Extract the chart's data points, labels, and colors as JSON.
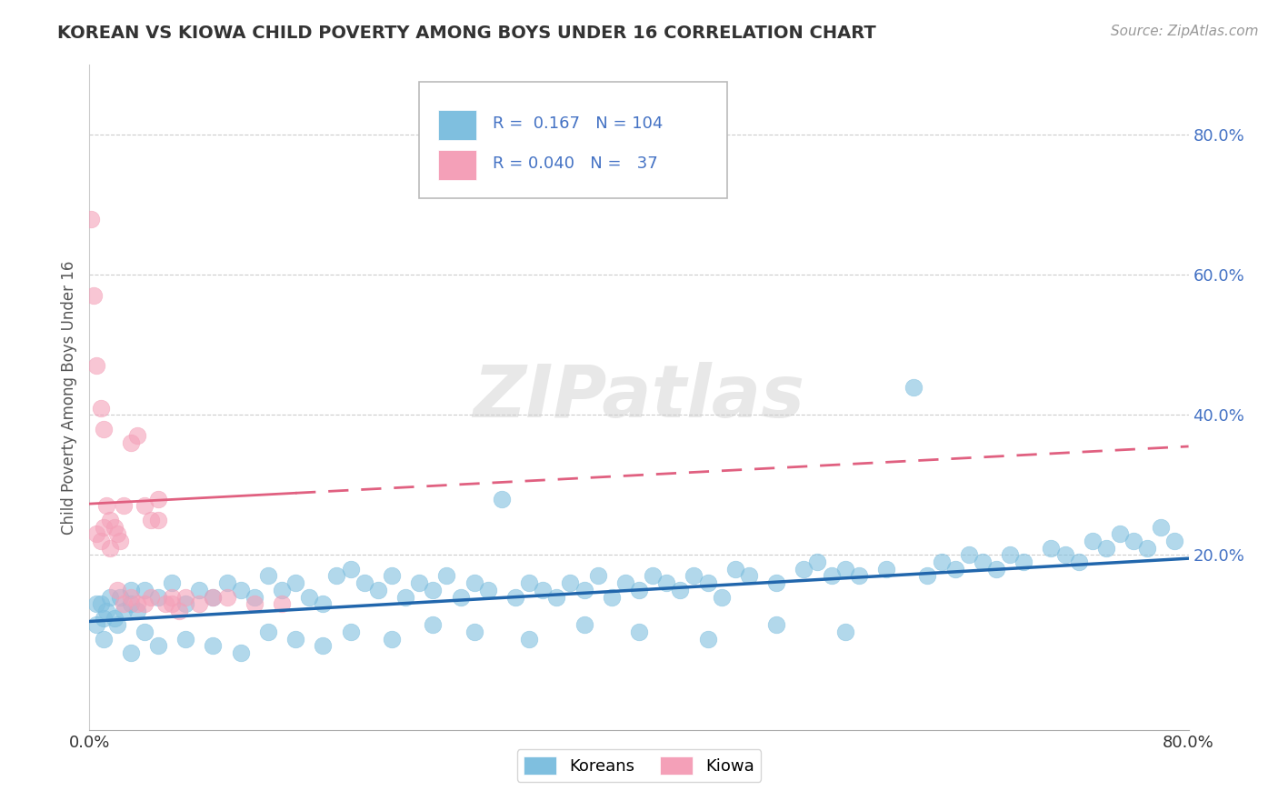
{
  "title": "KOREAN VS KIOWA CHILD POVERTY AMONG BOYS UNDER 16 CORRELATION CHART",
  "source": "Source: ZipAtlas.com",
  "ylabel": "Child Poverty Among Boys Under 16",
  "xlim": [
    0.0,
    0.8
  ],
  "ylim": [
    -0.05,
    0.9
  ],
  "ytick_labels": [
    "20.0%",
    "40.0%",
    "60.0%",
    "80.0%"
  ],
  "ytick_values": [
    0.2,
    0.4,
    0.6,
    0.8
  ],
  "korean_color": "#7fbfdf",
  "kiowa_color": "#f4a0b8",
  "korean_line_color": "#2166ac",
  "kiowa_line_color": "#e06080",
  "korean_R": 0.167,
  "korean_N": 104,
  "kiowa_R": 0.04,
  "kiowa_N": 37,
  "watermark": "ZIPatlas",
  "background_color": "#ffffff",
  "right_tick_color": "#4472c4",
  "korean_x": [
    0.005,
    0.01,
    0.015,
    0.02,
    0.025,
    0.03,
    0.04,
    0.01,
    0.005,
    0.008,
    0.012,
    0.018,
    0.022,
    0.03,
    0.035,
    0.04,
    0.05,
    0.06,
    0.07,
    0.08,
    0.09,
    0.1,
    0.11,
    0.12,
    0.13,
    0.14,
    0.15,
    0.16,
    0.17,
    0.18,
    0.19,
    0.2,
    0.21,
    0.22,
    0.23,
    0.24,
    0.25,
    0.26,
    0.27,
    0.28,
    0.29,
    0.3,
    0.31,
    0.32,
    0.33,
    0.34,
    0.35,
    0.36,
    0.37,
    0.38,
    0.39,
    0.4,
    0.41,
    0.42,
    0.43,
    0.44,
    0.45,
    0.46,
    0.47,
    0.48,
    0.5,
    0.52,
    0.53,
    0.54,
    0.55,
    0.56,
    0.58,
    0.6,
    0.61,
    0.62,
    0.63,
    0.64,
    0.65,
    0.66,
    0.67,
    0.68,
    0.7,
    0.71,
    0.72,
    0.73,
    0.74,
    0.75,
    0.76,
    0.77,
    0.78,
    0.79,
    0.03,
    0.05,
    0.07,
    0.09,
    0.11,
    0.13,
    0.15,
    0.17,
    0.19,
    0.22,
    0.25,
    0.28,
    0.32,
    0.36,
    0.4,
    0.45,
    0.5,
    0.55
  ],
  "korean_y": [
    0.13,
    0.11,
    0.14,
    0.1,
    0.12,
    0.15,
    0.09,
    0.08,
    0.1,
    0.13,
    0.12,
    0.11,
    0.14,
    0.13,
    0.12,
    0.15,
    0.14,
    0.16,
    0.13,
    0.15,
    0.14,
    0.16,
    0.15,
    0.14,
    0.17,
    0.15,
    0.16,
    0.14,
    0.13,
    0.17,
    0.18,
    0.16,
    0.15,
    0.17,
    0.14,
    0.16,
    0.15,
    0.17,
    0.14,
    0.16,
    0.15,
    0.28,
    0.14,
    0.16,
    0.15,
    0.14,
    0.16,
    0.15,
    0.17,
    0.14,
    0.16,
    0.15,
    0.17,
    0.16,
    0.15,
    0.17,
    0.16,
    0.14,
    0.18,
    0.17,
    0.16,
    0.18,
    0.19,
    0.17,
    0.18,
    0.17,
    0.18,
    0.44,
    0.17,
    0.19,
    0.18,
    0.2,
    0.19,
    0.18,
    0.2,
    0.19,
    0.21,
    0.2,
    0.19,
    0.22,
    0.21,
    0.23,
    0.22,
    0.21,
    0.24,
    0.22,
    0.06,
    0.07,
    0.08,
    0.07,
    0.06,
    0.09,
    0.08,
    0.07,
    0.09,
    0.08,
    0.1,
    0.09,
    0.08,
    0.1,
    0.09,
    0.08,
    0.1,
    0.09
  ],
  "kiowa_x": [
    0.001,
    0.003,
    0.005,
    0.008,
    0.01,
    0.012,
    0.015,
    0.018,
    0.02,
    0.022,
    0.025,
    0.03,
    0.035,
    0.04,
    0.045,
    0.05,
    0.06,
    0.07,
    0.08,
    0.09,
    0.1,
    0.12,
    0.14,
    0.005,
    0.008,
    0.01,
    0.015,
    0.02,
    0.025,
    0.03,
    0.035,
    0.04,
    0.045,
    0.05,
    0.055,
    0.06,
    0.065
  ],
  "kiowa_y": [
    0.68,
    0.57,
    0.47,
    0.41,
    0.38,
    0.27,
    0.25,
    0.24,
    0.23,
    0.22,
    0.27,
    0.36,
    0.37,
    0.27,
    0.25,
    0.28,
    0.13,
    0.14,
    0.13,
    0.14,
    0.14,
    0.13,
    0.13,
    0.23,
    0.22,
    0.24,
    0.21,
    0.15,
    0.13,
    0.14,
    0.13,
    0.13,
    0.14,
    0.25,
    0.13,
    0.14,
    0.12
  ]
}
